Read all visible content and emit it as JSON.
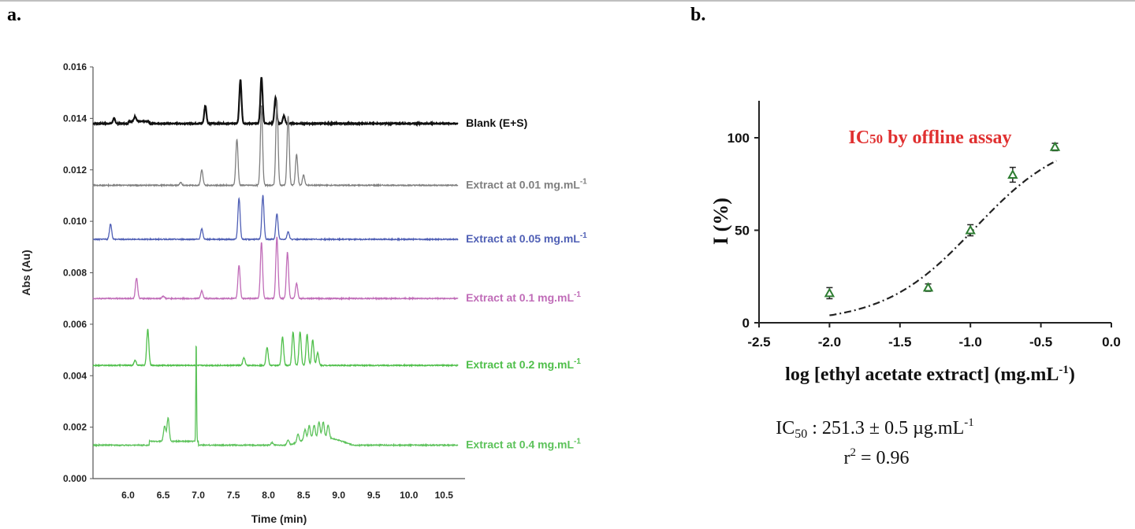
{
  "panel_a_label": "a.",
  "panel_b_label": "b.",
  "chart_data": [
    {
      "type": "line",
      "panel": "a",
      "xlabel": "Time (min)",
      "ylabel": "Abs (Au)",
      "xlim": [
        5.5,
        10.8
      ],
      "ylim": [
        0.0,
        0.016
      ],
      "x_ticks": [
        "6.0",
        "6.5",
        "7.0",
        "7.5",
        "8.0",
        "8.5",
        "9.0",
        "9.5",
        "10.0",
        "10.5"
      ],
      "y_ticks": [
        "0.000",
        "0.002",
        "0.004",
        "0.006",
        "0.008",
        "0.010",
        "0.012",
        "0.014",
        "0.016"
      ],
      "series": [
        {
          "name": "Blank (E+S)",
          "label": "Blank (E+S)",
          "color": "#111111",
          "baseline": 0.0138,
          "x_start": 5.5,
          "x_end": 10.7,
          "peaks": [
            [
              5.8,
              0.0002
            ],
            [
              6.1,
              0.0002
            ],
            [
              7.1,
              0.0007
            ],
            [
              7.6,
              0.0017
            ],
            [
              7.9,
              0.0018
            ],
            [
              8.1,
              0.001
            ],
            [
              8.22,
              0.0003
            ]
          ]
        },
        {
          "name": "Extract at 0.01 mg.mL-1",
          "label": "Extract at 0.01 mg.mL",
          "sup": "-1",
          "color": "#7f7f7f",
          "baseline": 0.0114,
          "x_start": 5.5,
          "x_end": 10.7,
          "peaks": [
            [
              6.75,
              0.0001
            ],
            [
              7.05,
              0.0006
            ],
            [
              7.55,
              0.0018
            ],
            [
              7.9,
              0.0031
            ],
            [
              8.12,
              0.0033
            ],
            [
              8.28,
              0.0027
            ],
            [
              8.4,
              0.0012
            ],
            [
              8.5,
              0.0004
            ]
          ]
        },
        {
          "name": "Extract at 0.05 mg.mL-1",
          "label": "Extract at 0.05 mg.mL",
          "sup": "-1",
          "color": "#4f5fb5",
          "baseline": 0.0093,
          "x_start": 5.5,
          "x_end": 10.7,
          "peaks": [
            [
              5.75,
              0.0006
            ],
            [
              7.05,
              0.0004
            ],
            [
              7.58,
              0.0016
            ],
            [
              7.92,
              0.0017
            ],
            [
              8.12,
              0.001
            ],
            [
              8.28,
              0.0003
            ]
          ]
        },
        {
          "name": "Extract at 0.1 mg.mL-1",
          "label": "Extract at 0.1 mg.mL",
          "sup": "-1",
          "color": "#c06cb8",
          "baseline": 0.007,
          "x_start": 5.5,
          "x_end": 10.7,
          "peaks": [
            [
              6.12,
              0.0008
            ],
            [
              6.5,
              0.0001
            ],
            [
              7.05,
              0.0003
            ],
            [
              7.58,
              0.0013
            ],
            [
              7.9,
              0.0022
            ],
            [
              8.12,
              0.0024
            ],
            [
              8.27,
              0.0018
            ],
            [
              8.4,
              0.0006
            ]
          ]
        },
        {
          "name": "Extract at 0.2 mg.mL-1",
          "label": "Extract at 0.2 mg.mL",
          "sup": "-1",
          "color": "#4fbf4a",
          "baseline": 0.0044,
          "x_start": 5.5,
          "x_end": 10.7,
          "peaks": [
            [
              6.1,
              0.0002
            ],
            [
              6.28,
              0.0014
            ],
            [
              7.65,
              0.0003
            ],
            [
              7.98,
              0.0007
            ],
            [
              8.2,
              0.0011
            ],
            [
              8.35,
              0.0013
            ],
            [
              8.45,
              0.0013
            ],
            [
              8.55,
              0.0012
            ],
            [
              8.63,
              0.001
            ],
            [
              8.7,
              0.0005
            ]
          ]
        },
        {
          "name": "Extract at 0.4 mg.mL-1",
          "label": "Extract at 0.4 mg.mL",
          "sup": "-1",
          "color": "#5cc25a",
          "baseline": 0.0013,
          "x_start": 5.5,
          "x_end": 10.7,
          "peaks": [
            [
              6.52,
              0.0006
            ],
            [
              6.57,
              0.0009
            ],
            [
              6.97,
              0.0039
            ],
            [
              8.05,
              0.0001
            ],
            [
              8.28,
              0.0002
            ],
            [
              8.42,
              0.0003
            ],
            [
              8.52,
              0.0004
            ],
            [
              8.58,
              0.0005
            ],
            [
              8.65,
              0.0005
            ],
            [
              8.72,
              0.0006
            ],
            [
              8.78,
              0.0006
            ],
            [
              8.85,
              0.0005
            ]
          ]
        }
      ]
    },
    {
      "type": "scatter",
      "panel": "b",
      "title": "IC50 by offline assay",
      "xlabel": "log [ethyl acetate extract] (mg.mL",
      "xlabel_sup": "-1",
      "xlabel_end": ")",
      "ylabel": "I (%)",
      "xlim": [
        -2.5,
        0.0
      ],
      "ylim": [
        0,
        120
      ],
      "x_ticks": [
        "-2.5",
        "-2.0",
        "-1.5",
        "-1.0",
        "-0.5",
        "0.0"
      ],
      "y_ticks": [
        "0",
        "50",
        "100"
      ],
      "points": [
        {
          "x": -2.0,
          "y": 16,
          "err": 3
        },
        {
          "x": -1.3,
          "y": 19,
          "err": 2
        },
        {
          "x": -1.0,
          "y": 50,
          "err": 3
        },
        {
          "x": -0.7,
          "y": 80,
          "err": 4
        },
        {
          "x": -0.4,
          "y": 95,
          "err": 2
        }
      ],
      "marker_color": "#2e7d32",
      "title_color": "#e03030",
      "fit": {
        "type": "sigmoid",
        "color": "#222222",
        "style": "dash-dot"
      },
      "ic50_text": "IC",
      "ic50_sub": "50",
      "ic50_value": " : 251.3 ± 0.5 µg.mL",
      "ic50_sup": "-1",
      "r2_text": "r",
      "r2_sup": "2",
      "r2_value": " = 0.96"
    }
  ]
}
